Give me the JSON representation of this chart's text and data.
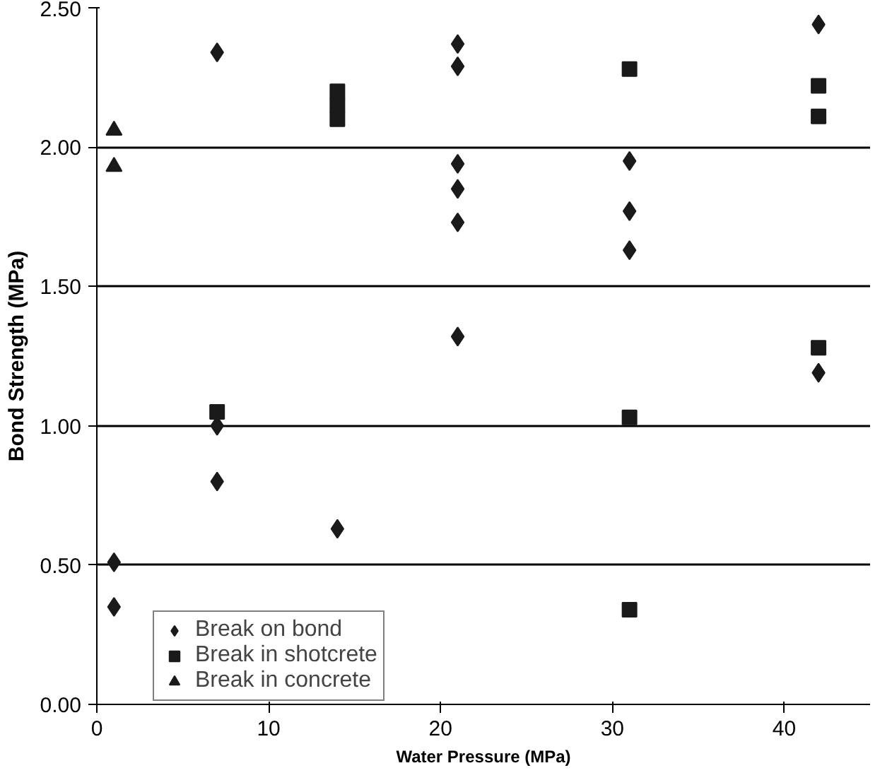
{
  "chart_data": {
    "type": "scatter",
    "xlabel": "Water Pressure (MPa)",
    "ylabel": "Bond Strength (MPa)",
    "xlim": [
      0,
      45
    ],
    "xticks": [
      0,
      10,
      20,
      30,
      40
    ],
    "ylim": [
      0,
      2.5
    ],
    "yticks": [
      {
        "value": 0,
        "label": "0.00"
      },
      {
        "value": 0.5,
        "label": "0.50"
      },
      {
        "value": 1,
        "label": "1.00"
      },
      {
        "value": 1.5,
        "label": "1.50"
      },
      {
        "value": 2,
        "label": "2.00"
      },
      {
        "value": 2.5,
        "label": "2.50"
      }
    ],
    "grid": "y",
    "legend": "bottom left",
    "series": [
      {
        "name": "Break on bond",
        "color": "#1a1a1a",
        "marker": "diamond",
        "x": [
          1,
          1,
          7,
          7,
          7,
          14,
          21,
          21,
          21,
          21,
          21,
          21,
          31,
          31,
          31,
          42,
          42
        ],
        "values": [
          0.51,
          0.35,
          2.34,
          1.0,
          0.8,
          0.63,
          2.37,
          2.29,
          1.94,
          1.85,
          1.73,
          1.32,
          1.95,
          1.77,
          1.63,
          2.44,
          1.19
        ]
      },
      {
        "name": "Break in shotcrete",
        "color": "#1a1a1a",
        "marker": "square",
        "x": [
          7,
          14,
          14,
          14,
          31,
          31,
          31,
          42,
          42,
          42
        ],
        "values": [
          1.05,
          2.2,
          2.15,
          2.1,
          2.28,
          1.03,
          0.34,
          2.22,
          2.11,
          1.28
        ]
      },
      {
        "name": "Break in concrete",
        "color": "#1a1a1a",
        "marker": "triangle",
        "x": [
          1,
          1
        ],
        "values": [
          2.06,
          1.93
        ]
      }
    ]
  }
}
